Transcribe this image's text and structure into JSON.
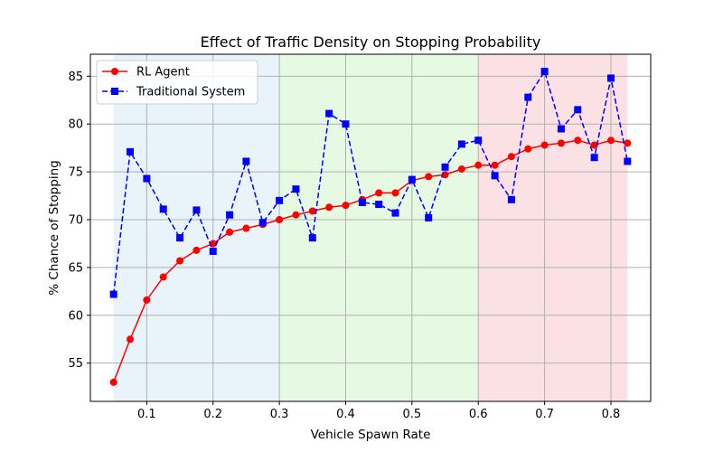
{
  "chart_data": {
    "type": "line",
    "title": "Effect of Traffic Density on Stopping Probability",
    "xlabel": "Vehicle Spawn Rate",
    "ylabel": "% Chance of Stopping",
    "xlim": [
      0.015,
      0.86
    ],
    "ylim": [
      51,
      87.3
    ],
    "xticks": [
      "0.1",
      "0.2",
      "0.3",
      "0.4",
      "0.5",
      "0.6",
      "0.7",
      "0.8"
    ],
    "yticks": [
      "55",
      "60",
      "65",
      "70",
      "75",
      "80",
      "85"
    ],
    "grid": true,
    "legend_position": "top-left",
    "bands": [
      {
        "x0": 0.05,
        "x1": 0.3,
        "color": "#d6eaf5"
      },
      {
        "x0": 0.3,
        "x1": 0.6,
        "color": "#d2f5cc"
      },
      {
        "x0": 0.6,
        "x1": 0.825,
        "color": "#f7c9cc"
      }
    ],
    "x": [
      0.05,
      0.075,
      0.1,
      0.125,
      0.15,
      0.175,
      0.2,
      0.225,
      0.25,
      0.275,
      0.3,
      0.325,
      0.35,
      0.375,
      0.4,
      0.425,
      0.45,
      0.475,
      0.5,
      0.525,
      0.55,
      0.575,
      0.6,
      0.625,
      0.65,
      0.675,
      0.7,
      0.725,
      0.75,
      0.775,
      0.8,
      0.825
    ],
    "series": [
      {
        "name": "RL Agent",
        "color": "#ff0000",
        "style": "solid",
        "marker": "circle",
        "values": [
          53.0,
          57.5,
          61.6,
          64.0,
          65.7,
          66.8,
          67.5,
          68.7,
          69.1,
          69.5,
          70.0,
          70.5,
          70.9,
          71.3,
          71.5,
          72.1,
          72.8,
          72.8,
          74.1,
          74.5,
          74.7,
          75.3,
          75.7,
          75.7,
          76.6,
          77.4,
          77.8,
          78.0,
          78.3,
          77.8,
          78.3,
          78.0
        ]
      },
      {
        "name": "Traditional System",
        "color": "#0000ff",
        "style": "dashed",
        "marker": "square",
        "values": [
          62.2,
          77.1,
          74.3,
          71.1,
          68.1,
          71.0,
          66.7,
          70.5,
          76.1,
          69.7,
          72.0,
          73.2,
          68.1,
          81.1,
          80.0,
          71.8,
          71.6,
          70.7,
          74.2,
          70.2,
          75.5,
          77.9,
          78.3,
          74.6,
          72.1,
          82.8,
          85.5,
          79.5,
          81.5,
          76.5,
          84.8,
          76.1
        ]
      }
    ]
  }
}
